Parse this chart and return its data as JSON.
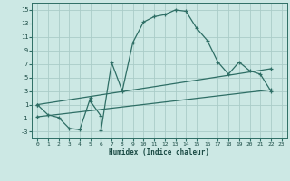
{
  "title": "",
  "xlabel": "Humidex (Indice chaleur)",
  "background_color": "#cce8e4",
  "grid_color": "#aaccc8",
  "line_color": "#2e6e65",
  "xlim": [
    -0.5,
    23.5
  ],
  "ylim": [
    -4,
    16
  ],
  "xticks": [
    0,
    1,
    2,
    3,
    4,
    5,
    6,
    7,
    8,
    9,
    10,
    11,
    12,
    13,
    14,
    15,
    16,
    17,
    18,
    19,
    20,
    21,
    22,
    23
  ],
  "yticks": [
    -3,
    -1,
    1,
    3,
    5,
    7,
    9,
    11,
    13,
    15
  ],
  "curve1_x": [
    0,
    1,
    2,
    3,
    4,
    5,
    5,
    6,
    6,
    7,
    8,
    9,
    10,
    11,
    12,
    13,
    14,
    15,
    16,
    17,
    18,
    19,
    20,
    21,
    22
  ],
  "curve1_y": [
    1,
    -0.5,
    -0.9,
    -2.5,
    -2.7,
    2.0,
    1.5,
    -0.7,
    -2.8,
    7.2,
    3.0,
    10.2,
    13.2,
    14.0,
    14.3,
    15.0,
    14.8,
    12.3,
    10.5,
    7.3,
    5.5,
    7.3,
    6.0,
    5.5,
    3.0
  ],
  "curve2_x": [
    0,
    22
  ],
  "curve2_y": [
    -0.8,
    3.2
  ],
  "curve3_x": [
    0,
    22
  ],
  "curve3_y": [
    1.0,
    6.3
  ],
  "marker": "+"
}
